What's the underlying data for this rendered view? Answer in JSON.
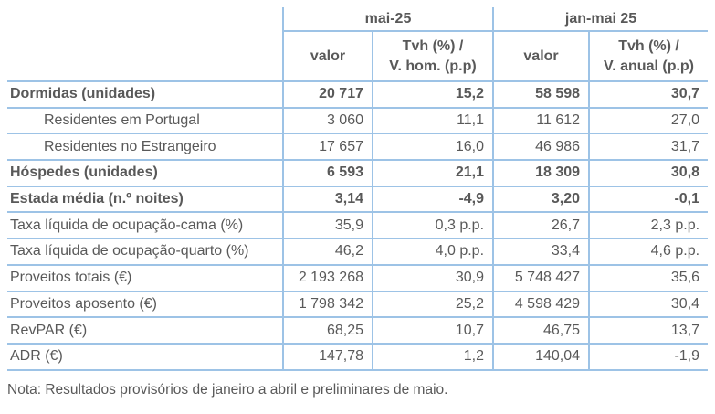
{
  "colors": {
    "border": "#9DC3E6",
    "text": "#595959",
    "background": "#FFFFFF"
  },
  "chart_data": {
    "type": "table",
    "column_groups": [
      {
        "label": "mai-25",
        "columns": [
          "valor",
          "Tvh (%) /\nV. hom. (p.p)"
        ]
      },
      {
        "label": "jan-mai 25",
        "columns": [
          "valor",
          "Tvh (%) /\nV. anual (p.p)"
        ]
      }
    ],
    "rows": [
      {
        "label": "Dormidas (unidades)",
        "bold": true,
        "indent": false,
        "values": [
          "20 717",
          "15,2",
          "58 598",
          "30,7"
        ]
      },
      {
        "label": "Residentes em Portugal",
        "bold": false,
        "indent": true,
        "values": [
          "3 060",
          "11,1",
          "11 612",
          "27,0"
        ]
      },
      {
        "label": "Residentes no Estrangeiro",
        "bold": false,
        "indent": true,
        "values": [
          "17 657",
          "16,0",
          "46 986",
          "31,7"
        ]
      },
      {
        "label": "Hóspedes (unidades)",
        "bold": true,
        "indent": false,
        "values": [
          "6 593",
          "21,1",
          "18 309",
          "30,8"
        ]
      },
      {
        "label": "Estada média (n.º noites)",
        "bold": true,
        "indent": false,
        "values": [
          "3,14",
          "-4,9",
          "3,20",
          "-0,1"
        ]
      },
      {
        "label": "Taxa líquida de ocupação-cama (%)",
        "bold": false,
        "indent": false,
        "values": [
          "35,9",
          "0,3 p.p.",
          "26,7",
          "2,3 p.p."
        ]
      },
      {
        "label": "Taxa líquida de ocupação-quarto (%)",
        "bold": false,
        "indent": false,
        "values": [
          "46,2",
          "4,0 p.p.",
          "33,4",
          "4,6 p.p."
        ]
      },
      {
        "label": "Proveitos totais (€)",
        "bold": false,
        "indent": false,
        "values": [
          "2 193 268",
          "30,9",
          "5 748 427",
          "35,6"
        ]
      },
      {
        "label": "Proveitos aposento (€)",
        "bold": false,
        "indent": false,
        "values": [
          "1 798 342",
          "25,2",
          "4 598 429",
          "30,4"
        ]
      },
      {
        "label": "RevPAR (€)",
        "bold": false,
        "indent": false,
        "values": [
          "68,25",
          "10,7",
          "46,75",
          "13,7"
        ]
      },
      {
        "label": "ADR (€)",
        "bold": false,
        "indent": false,
        "values": [
          "147,78",
          "1,2",
          "140,04",
          "-1,9"
        ]
      }
    ],
    "note": "Nota: Resultados provisórios de janeiro a abril e preliminares de maio."
  }
}
